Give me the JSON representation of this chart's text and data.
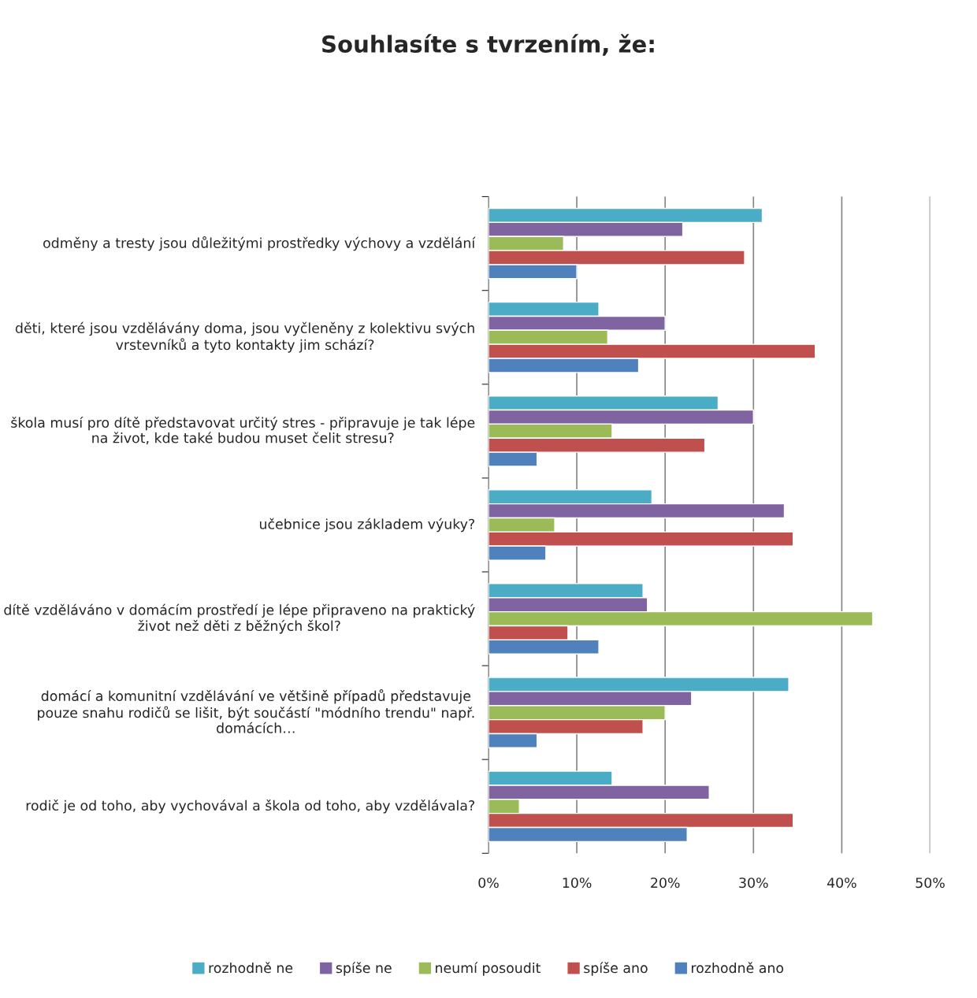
{
  "chart_data": {
    "type": "bar",
    "orientation": "horizontal",
    "title": "Souhlasíte s tvrzením, že:",
    "categories": [
      "odměny a tresty jsou důležitými prostředky výchovy a vzdělání",
      "děti, které jsou vzdělávány doma, jsou vyčleněny z kolektivu svých vrstevníků a tyto kontakty jim schází?",
      "škola musí pro dítě představovat určitý stres - připravuje je tak lépe na život, kde také budou muset čelit stresu?",
      "učebnice jsou základem výuky?",
      "dítě vzděláváno v domácím prostředí je lépe připraveno na praktický život než děti z běžných škol?",
      "domácí a komunitní vzdělávání ve většině případů představuje pouze snahu rodičů se lišit, být součástí \"módního trendu\" např. domácích…",
      "rodič je od toho, aby vychovával a škola od toho, aby vzdělávala?"
    ],
    "series": [
      {
        "name": "rozhodně ne",
        "color": "#4bacc6",
        "values": [
          31,
          12.5,
          26,
          18.5,
          17.5,
          34,
          14
        ]
      },
      {
        "name": "spíše ne",
        "color": "#8064a2",
        "values": [
          22,
          20,
          30,
          33.5,
          18,
          23,
          25
        ]
      },
      {
        "name": "neumí posoudit",
        "color": "#9bbb59",
        "values": [
          8.5,
          13.5,
          14,
          7.5,
          43.5,
          20,
          3.5
        ]
      },
      {
        "name": "spíše ano",
        "color": "#c0504d",
        "values": [
          29,
          37,
          24.5,
          34.5,
          9,
          17.5,
          34.5
        ]
      },
      {
        "name": "rozhodně ano",
        "color": "#4f81bd",
        "values": [
          10,
          17,
          5.5,
          6.5,
          12.5,
          5.5,
          22.5
        ]
      }
    ],
    "xlim": [
      0,
      50
    ],
    "xticks": [
      {
        "value": 0,
        "label": "0%"
      },
      {
        "value": 10,
        "label": "10%"
      },
      {
        "value": 20,
        "label": "20%"
      },
      {
        "value": 30,
        "label": "30%"
      },
      {
        "value": 40,
        "label": "40%"
      },
      {
        "value": 50,
        "label": "50%"
      }
    ],
    "grid": "x",
    "legend": "bottom"
  }
}
